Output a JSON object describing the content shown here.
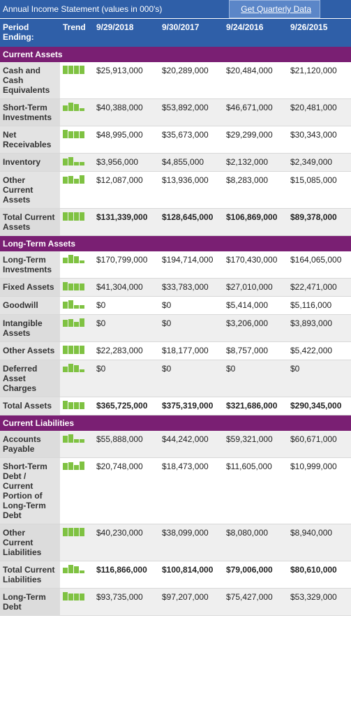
{
  "header": {
    "title": "Annual Income Statement (values in 000's)",
    "link": "Get Quarterly Data"
  },
  "table": {
    "columns": [
      "Period Ending:",
      "Trend",
      "9/29/2018",
      "9/30/2017",
      "9/24/2016",
      "9/26/2015"
    ],
    "sections": [
      {
        "title": "Current Assets",
        "rows": [
          {
            "label": "Cash and Cash Equivalents",
            "values": [
              "$25,913,000",
              "$20,289,000",
              "$20,484,000",
              "$21,120,000"
            ]
          },
          {
            "label": "Short-Term Investments",
            "values": [
              "$40,388,000",
              "$53,892,000",
              "$46,671,000",
              "$20,481,000"
            ]
          },
          {
            "label": "Net Receivables",
            "values": [
              "$48,995,000",
              "$35,673,000",
              "$29,299,000",
              "$30,343,000"
            ]
          },
          {
            "label": "Inventory",
            "values": [
              "$3,956,000",
              "$4,855,000",
              "$2,132,000",
              "$2,349,000"
            ]
          },
          {
            "label": "Other Current Assets",
            "values": [
              "$12,087,000",
              "$13,936,000",
              "$8,283,000",
              "$15,085,000"
            ]
          },
          {
            "label": "Total Current Assets",
            "values": [
              "$131,339,000",
              "$128,645,000",
              "$106,869,000",
              "$89,378,000"
            ],
            "total": true
          }
        ]
      },
      {
        "title": "Long-Term Assets",
        "rows": [
          {
            "label": "Long-Term Investments",
            "values": [
              "$170,799,000",
              "$194,714,000",
              "$170,430,000",
              "$164,065,000"
            ]
          },
          {
            "label": "Fixed Assets",
            "values": [
              "$41,304,000",
              "$33,783,000",
              "$27,010,000",
              "$22,471,000"
            ]
          },
          {
            "label": "Goodwill",
            "values": [
              "$0",
              "$0",
              "$5,414,000",
              "$5,116,000"
            ]
          },
          {
            "label": "Intangible Assets",
            "values": [
              "$0",
              "$0",
              "$3,206,000",
              "$3,893,000"
            ]
          },
          {
            "label": "Other Assets",
            "values": [
              "$22,283,000",
              "$18,177,000",
              "$8,757,000",
              "$5,422,000"
            ]
          },
          {
            "label": "Deferred Asset Charges",
            "values": [
              "$0",
              "$0",
              "$0",
              "$0"
            ]
          },
          {
            "label": "Total Assets",
            "values": [
              "$365,725,000",
              "$375,319,000",
              "$321,686,000",
              "$290,345,000"
            ],
            "total": true
          }
        ]
      },
      {
        "title": "Current Liabilities",
        "rows": [
          {
            "label": "Accounts Payable",
            "values": [
              "$55,888,000",
              "$44,242,000",
              "$59,321,000",
              "$60,671,000"
            ]
          },
          {
            "label": "Short-Term Debt / Current Portion of Long-Term Debt",
            "values": [
              "$20,748,000",
              "$18,473,000",
              "$11,605,000",
              "$10,999,000"
            ]
          },
          {
            "label": "Other Current Liabilities",
            "values": [
              "$40,230,000",
              "$38,099,000",
              "$8,080,000",
              "$8,940,000"
            ]
          },
          {
            "label": "Total Current Liabilities",
            "values": [
              "$116,866,000",
              "$100,814,000",
              "$79,006,000",
              "$80,610,000"
            ],
            "total": true
          },
          {
            "label": "Long-Term Debt",
            "values": [
              "$93,735,000",
              "$97,207,000",
              "$75,427,000",
              "$53,329,000"
            ]
          }
        ]
      }
    ]
  }
}
